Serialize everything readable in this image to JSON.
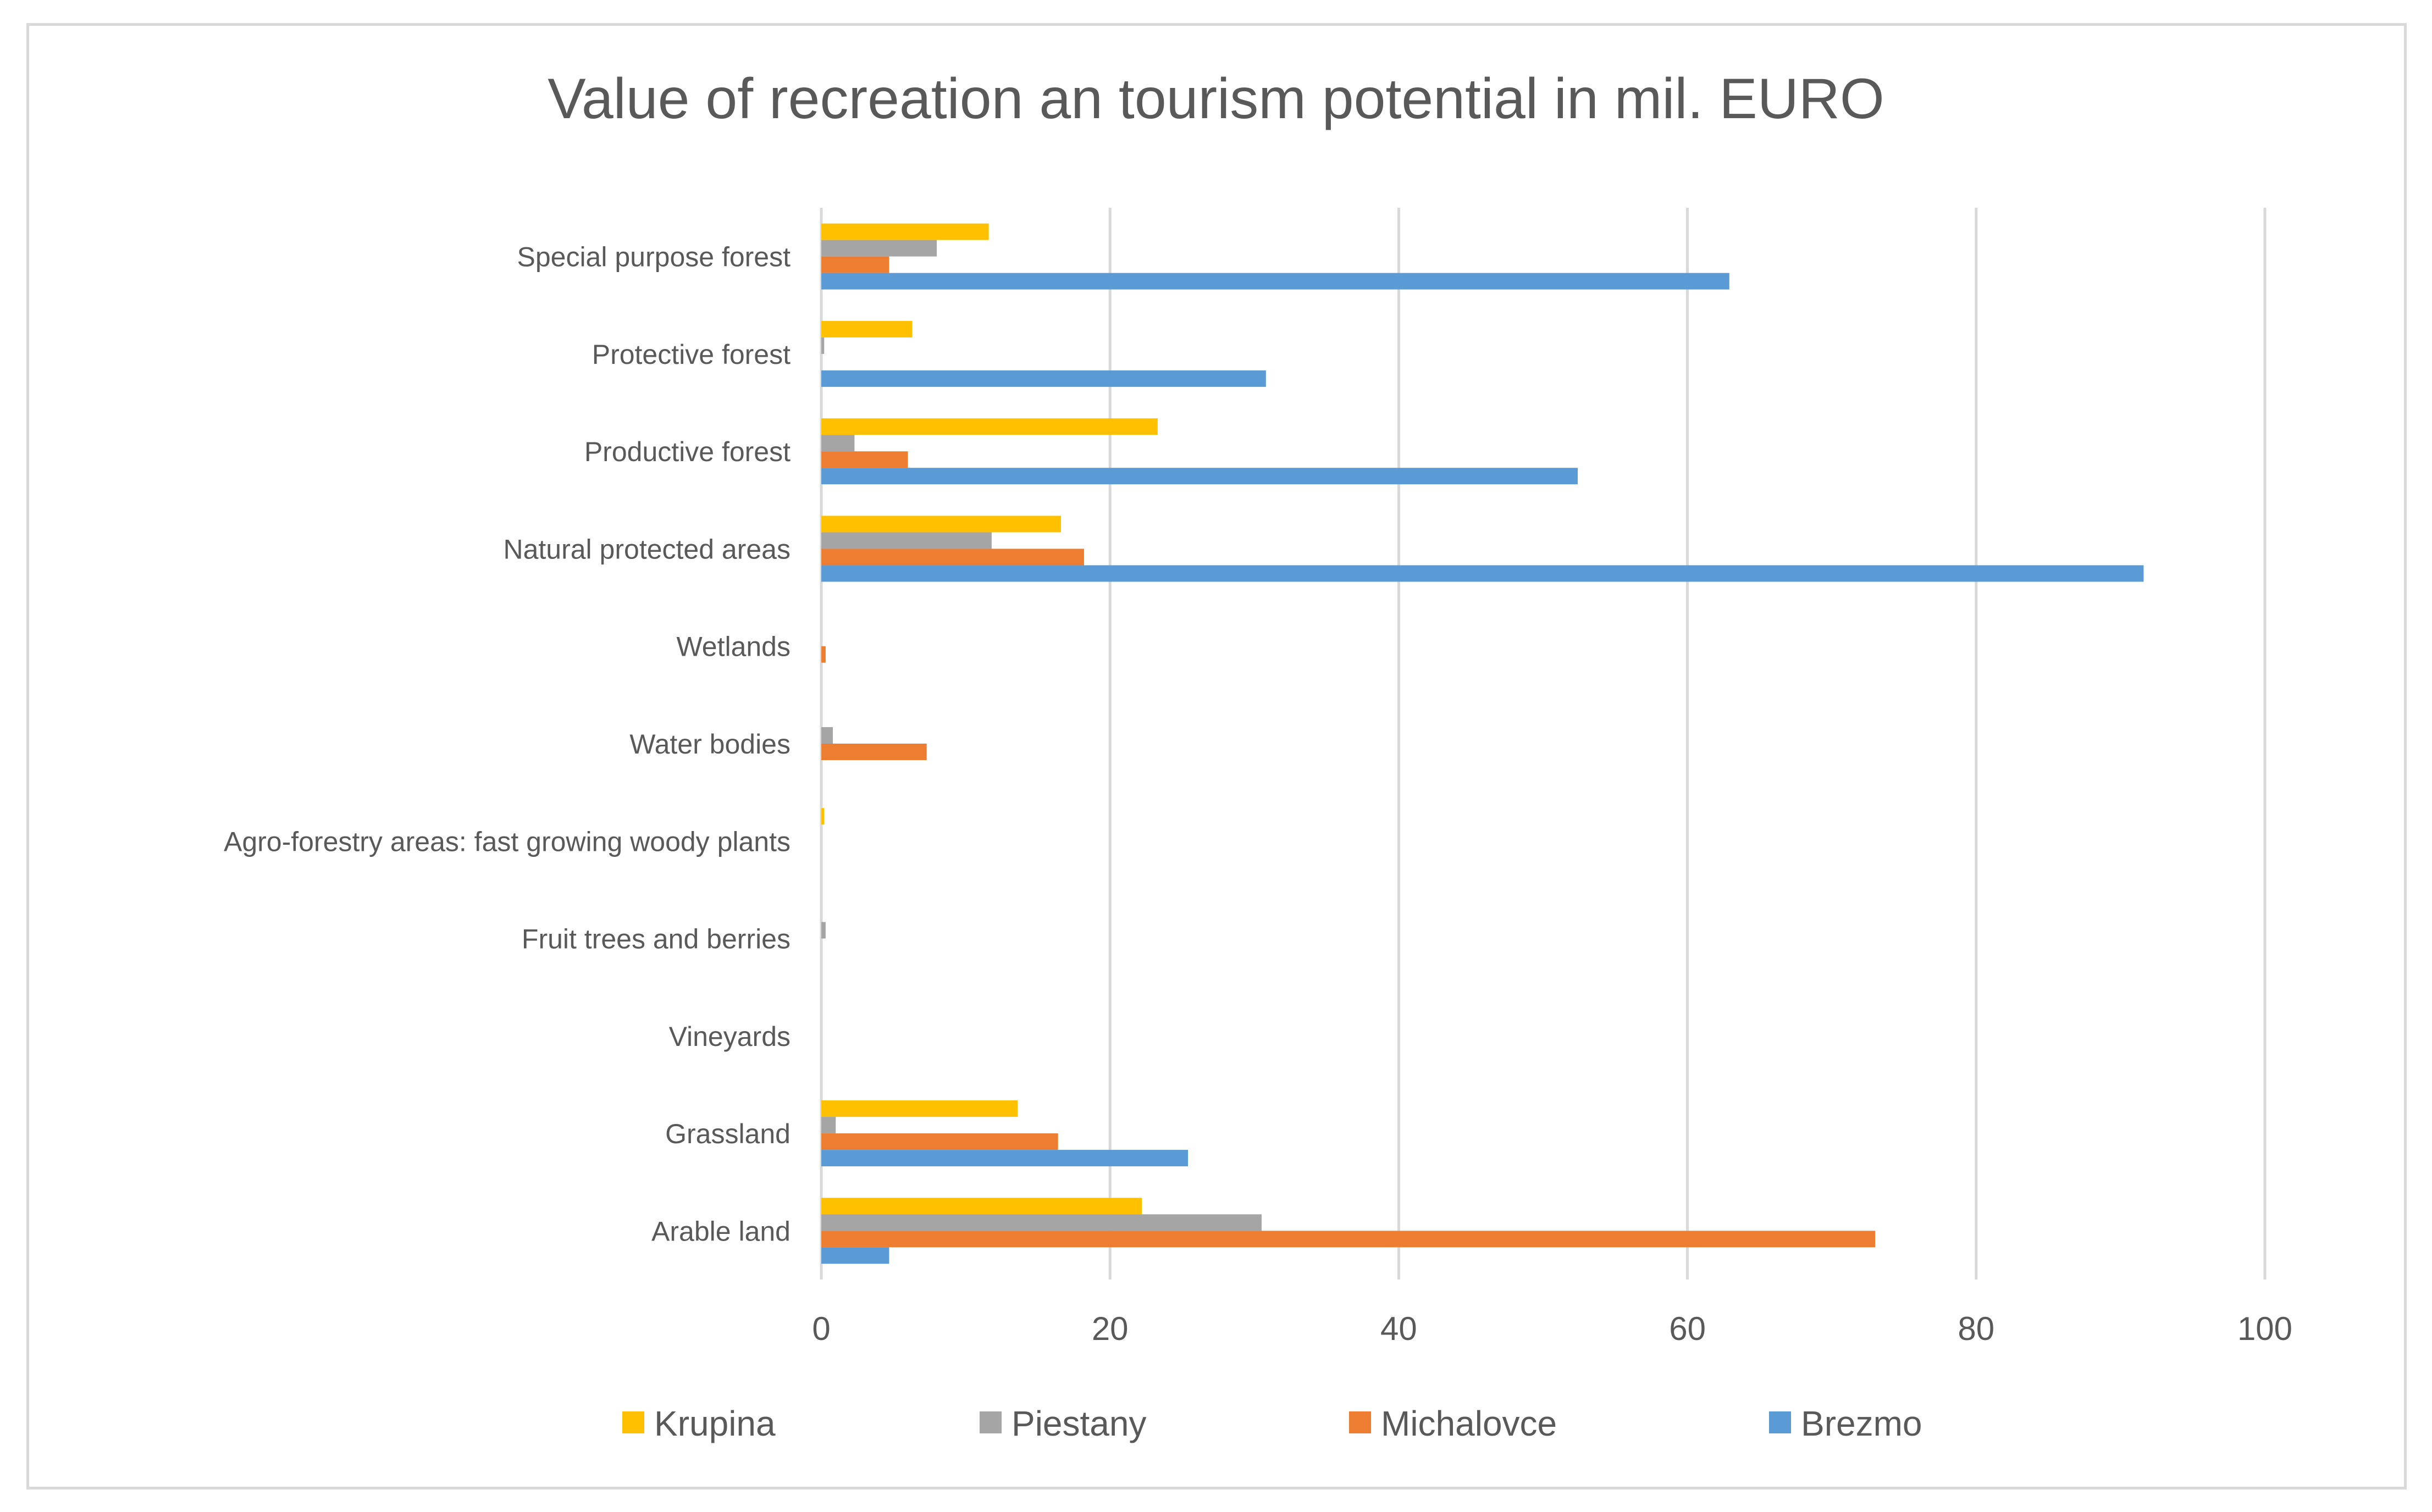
{
  "chart_data": {
    "type": "bar",
    "orientation": "horizontal",
    "title": "Value of recreation an tourism potential in mil. EURO",
    "categories": [
      "Arable land",
      "Grassland",
      "Vineyards",
      "Fruit trees and berries",
      "Agro-forestry areas: fast growing woody plants",
      "Water bodies",
      "Wetlands",
      "Natural protected areas",
      "Productive forest",
      "Protective forest",
      "Special purpose forest"
    ],
    "series": [
      {
        "name": "Krupina",
        "color": "#ffc000",
        "values": [
          22.2,
          13.6,
          0,
          0,
          0.2,
          0,
          0,
          16.6,
          23.3,
          6.3,
          11.6
        ]
      },
      {
        "name": "Piestany",
        "color": "#a5a5a5",
        "values": [
          30.5,
          1.0,
          0,
          0.3,
          0,
          0.8,
          0,
          11.8,
          2.3,
          0.2,
          8.0
        ]
      },
      {
        "name": "Michalovce",
        "color": "#ed7d31",
        "values": [
          73.0,
          16.4,
          0,
          0,
          0,
          7.3,
          0.3,
          18.2,
          6.0,
          0,
          4.7
        ]
      },
      {
        "name": "Brezmo",
        "color": "#5b9bd5",
        "values": [
          4.7,
          25.4,
          0,
          0,
          0,
          0,
          0,
          91.6,
          52.4,
          30.8,
          62.9
        ]
      }
    ],
    "legend_order": [
      "Krupina",
      "Piestany",
      "Michalovce",
      "Brezmo"
    ],
    "xlim": [
      0,
      100
    ],
    "xticks": [
      0,
      20,
      40,
      60,
      80,
      100
    ],
    "grid": "vertical",
    "legend": "bottom",
    "gridline_color": "#d9d9d9",
    "text_color": "#595959"
  }
}
